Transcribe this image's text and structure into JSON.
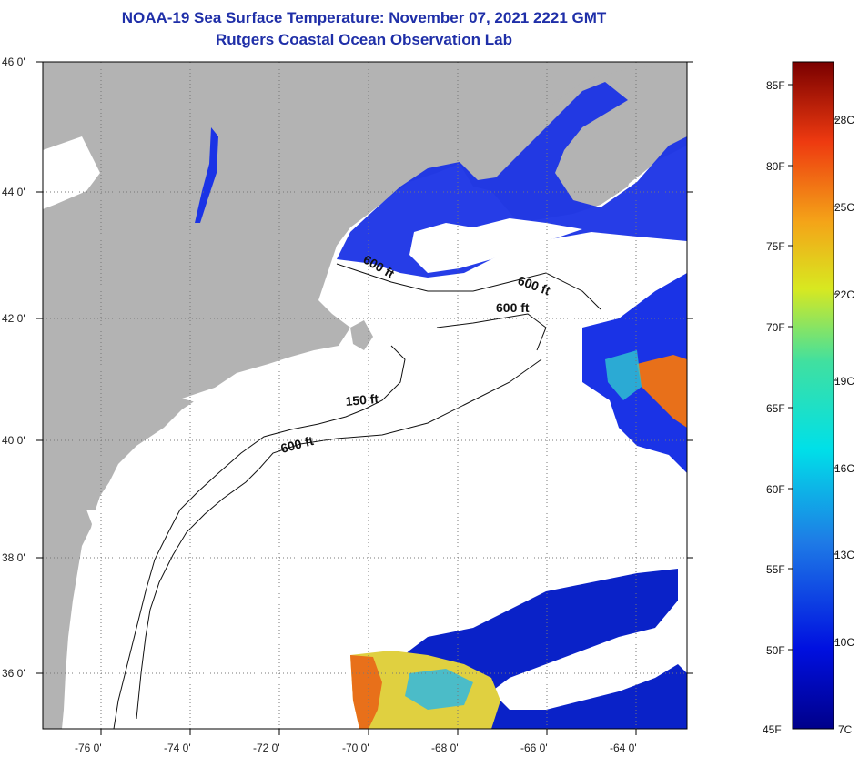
{
  "title": {
    "line1": "NOAA-19 Sea Surface Temperature:  November 07, 2021 2221 GMT",
    "line2": "Rutgers Coastal Ocean Observation Lab"
  },
  "map": {
    "lat_labels": [
      "46 0'",
      "44 0'",
      "42 0'",
      "40 0'",
      "38 0'",
      "36 0'"
    ],
    "lon_labels": [
      "-76 0'",
      "-74 0'",
      "-72 0'",
      "-70 0'",
      "-68 0'",
      "-66 0'",
      "-64 0'"
    ],
    "contour_labels": [
      "600 ft",
      "600 ft",
      "600 ft",
      "150 ft",
      "600 ft"
    ],
    "colors": {
      "land": "#b3b3b3",
      "ocean_clear": "#ffffff",
      "cold": "#1a33e6",
      "warm": "#e8701a"
    }
  },
  "colorbar": {
    "fahrenheit": [
      "85F",
      "80F",
      "75F",
      "70F",
      "65F",
      "60F",
      "55F",
      "50F",
      "45F"
    ],
    "celsius": [
      "28C",
      "25C",
      "22C",
      "19C",
      "16C",
      "13C",
      "10C",
      "7C"
    ]
  }
}
